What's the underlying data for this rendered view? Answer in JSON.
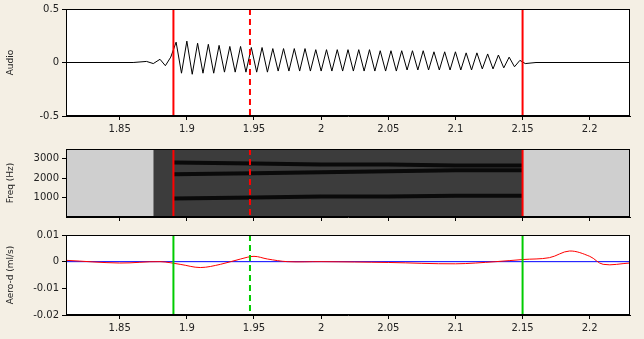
{
  "chart_data": [
    {
      "type": "line",
      "y_label": "Audio",
      "xlim": [
        1.81,
        2.23
      ],
      "xticks": [
        1.85,
        1.9,
        1.95,
        2,
        2.05,
        2.1,
        2.15,
        2.2
      ],
      "ylim": [
        -0.5,
        0.5
      ],
      "yticks": [
        -0.5,
        0,
        0.5
      ],
      "grid": false,
      "series": [
        {
          "color": "#000000",
          "line_style": "solid",
          "x": [
            1.81,
            1.86,
            1.87,
            1.875,
            1.88,
            1.884,
            1.888,
            1.892,
            1.896,
            1.9,
            1.904,
            1.908,
            1.912,
            1.916,
            1.92,
            1.924,
            1.928,
            1.932,
            1.936,
            1.94,
            1.944,
            1.948,
            1.952,
            1.956,
            1.96,
            1.964,
            1.968,
            1.972,
            1.976,
            1.98,
            1.984,
            1.988,
            1.992,
            1.996,
            2.0,
            2.004,
            2.008,
            2.012,
            2.016,
            2.02,
            2.024,
            2.028,
            2.032,
            2.036,
            2.04,
            2.044,
            2.048,
            2.052,
            2.056,
            2.06,
            2.064,
            2.068,
            2.072,
            2.076,
            2.08,
            2.084,
            2.088,
            2.092,
            2.096,
            2.1,
            2.104,
            2.108,
            2.112,
            2.116,
            2.12,
            2.124,
            2.128,
            2.132,
            2.136,
            2.14,
            2.144,
            2.148,
            2.152,
            2.16,
            2.23
          ],
          "values": [
            0,
            0,
            0.01,
            -0.01,
            0.03,
            -0.03,
            0.05,
            0.19,
            -0.1,
            0.2,
            -0.11,
            0.18,
            -0.1,
            0.17,
            -0.1,
            0.16,
            -0.09,
            0.15,
            -0.09,
            0.15,
            -0.09,
            0.14,
            -0.09,
            0.14,
            -0.09,
            0.13,
            -0.08,
            0.13,
            -0.08,
            0.13,
            -0.08,
            0.13,
            -0.08,
            0.12,
            -0.08,
            0.12,
            -0.08,
            0.12,
            -0.08,
            0.12,
            -0.08,
            0.12,
            -0.08,
            0.12,
            -0.08,
            0.11,
            -0.08,
            0.11,
            -0.08,
            0.11,
            -0.07,
            0.11,
            -0.07,
            0.11,
            -0.07,
            0.1,
            -0.07,
            0.1,
            -0.07,
            0.1,
            -0.07,
            0.09,
            -0.07,
            0.09,
            -0.06,
            0.08,
            -0.06,
            0.07,
            -0.05,
            0.05,
            -0.04,
            0.02,
            -0.01,
            0,
            0
          ]
        }
      ],
      "markers": [
        {
          "x": 1.89,
          "color": "#ff0000",
          "line_style": "solid"
        },
        {
          "x": 1.947,
          "color": "#ff0000",
          "line_style": "dashed"
        },
        {
          "x": 2.15,
          "color": "#ff0000",
          "line_style": "solid"
        }
      ]
    },
    {
      "type": "line",
      "y_label": "Freq (Hz)",
      "xlim": [
        1.81,
        2.23
      ],
      "xticks": [
        1.85,
        1.9,
        1.95,
        2,
        2.05,
        2.1,
        2.15,
        2.2
      ],
      "ylim": [
        0,
        3500
      ],
      "yticks": [
        1000,
        2000,
        3000
      ],
      "grid": false,
      "tick_labels": "y",
      "series": [
        {
          "type": "area",
          "color": "#3c3c3c",
          "x": [
            1.875,
            2.15
          ],
          "values": [
            3500,
            3500
          ]
        },
        {
          "color": "#0a0a0a",
          "line_style": "solid",
          "x": [
            1.89,
            1.95,
            2.0,
            2.05,
            2.1,
            2.15
          ],
          "values": [
            950,
            1000,
            1050,
            1050,
            1100,
            1100
          ]
        },
        {
          "color": "#0a0a0a",
          "line_style": "solid",
          "x": [
            1.89,
            1.95,
            2.0,
            2.05,
            2.1,
            2.15
          ],
          "values": [
            2200,
            2250,
            2300,
            2350,
            2400,
            2400
          ]
        },
        {
          "color": "#0a0a0a",
          "line_style": "solid",
          "x": [
            1.89,
            1.95,
            2.0,
            2.05,
            2.1,
            2.15
          ],
          "values": [
            2800,
            2750,
            2700,
            2700,
            2650,
            2650
          ]
        }
      ],
      "markers": [
        {
          "x": 1.89,
          "color": "#ff0000",
          "line_style": "solid"
        },
        {
          "x": 1.947,
          "color": "#ff0000",
          "line_style": "dashed"
        },
        {
          "x": 2.15,
          "color": "#ff0000",
          "line_style": "solid"
        }
      ]
    },
    {
      "type": "line",
      "y_label": "Aero-d (ml/s)",
      "xlim": [
        1.81,
        2.23
      ],
      "xticks": [
        1.85,
        1.9,
        1.95,
        2,
        2.05,
        2.1,
        2.15,
        2.2
      ],
      "ylim": [
        -0.02,
        0.01
      ],
      "yticks": [
        -0.02,
        -0.01,
        0,
        0.01
      ],
      "grid": false,
      "series": [
        {
          "color": "#0000ff",
          "line_style": "solid",
          "x": [
            1.81,
            2.23
          ],
          "values": [
            0,
            0
          ]
        },
        {
          "color": "#ff0000",
          "line_style": "solid",
          "x": [
            1.81,
            1.85,
            1.88,
            1.895,
            1.91,
            1.925,
            1.94,
            1.95,
            1.96,
            1.975,
            2.0,
            2.05,
            2.1,
            2.13,
            2.15,
            2.17,
            2.185,
            2.2,
            2.21,
            2.23
          ],
          "values": [
            0.0005,
            -0.0005,
            0,
            -0.001,
            -0.0022,
            -0.001,
            0.001,
            0.002,
            0.001,
            0,
            0,
            -0.0003,
            -0.0008,
            0,
            0.0008,
            0.0015,
            0.004,
            0.002,
            -0.001,
            -0.0005
          ]
        }
      ],
      "markers": [
        {
          "x": 1.89,
          "color": "#00cc00",
          "line_style": "solid"
        },
        {
          "x": 1.947,
          "color": "#00cc00",
          "line_style": "dashed"
        },
        {
          "x": 2.15,
          "color": "#00cc00",
          "line_style": "solid"
        }
      ]
    }
  ]
}
